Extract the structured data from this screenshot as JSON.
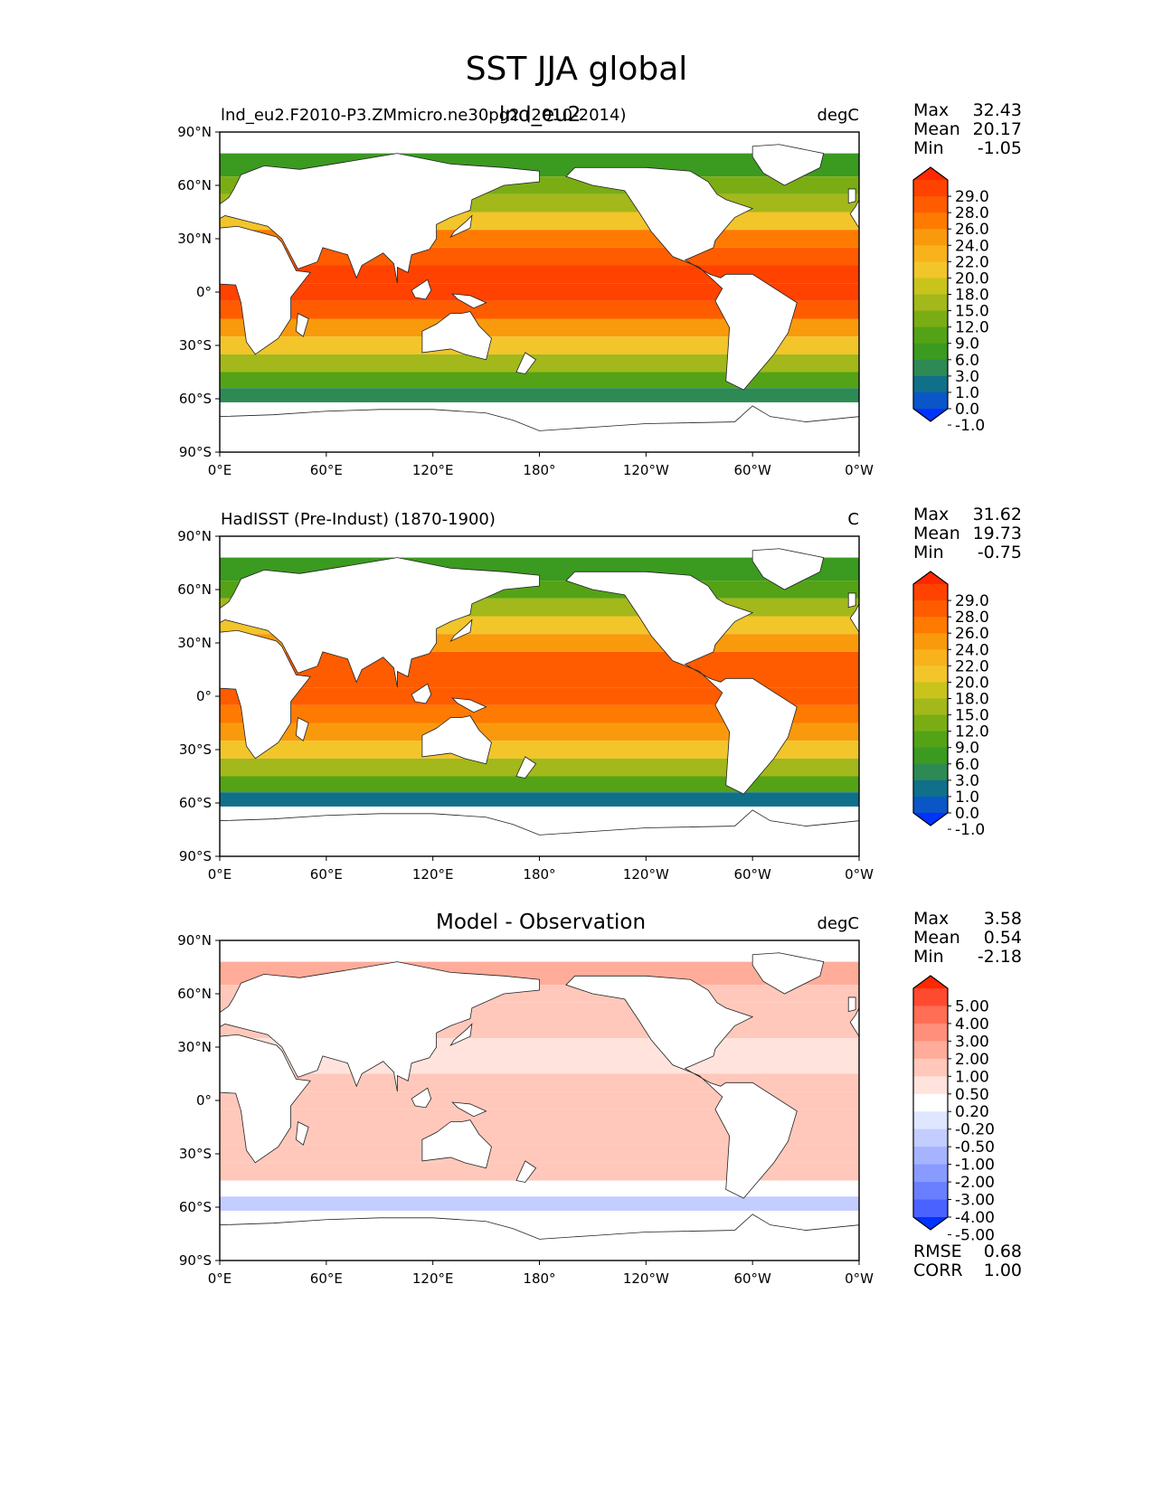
{
  "figure": {
    "title": "SST JJA global"
  },
  "chart_data": [
    {
      "type": "heatmap",
      "panel": "test",
      "title": "lnd_eu2",
      "left_label": "lnd_eu2.F2010-P3.ZMmicro.ne30pg2 (2010-2014)",
      "units": "degC",
      "stats": [
        {
          "label": "Max",
          "value": "32.43"
        },
        {
          "label": "Mean",
          "value": "20.17"
        },
        {
          "label": "Min",
          "value": "-1.05"
        }
      ],
      "colorbar": {
        "ticks": [
          "29.0",
          "28.0",
          "26.0",
          "24.0",
          "22.0",
          "20.0",
          "18.0",
          "15.0",
          "12.0",
          "9.0",
          "6.0",
          "3.0",
          "1.0",
          "0.0",
          "-1.0"
        ],
        "colors": [
          "#ff2800",
          "#ff4200",
          "#ff5c00",
          "#ff7a00",
          "#f99a0c",
          "#f7b21c",
          "#f2c52a",
          "#c8c41c",
          "#a3b81a",
          "#7aad14",
          "#54a316",
          "#3b9a20",
          "#2d8a55",
          "#10708a",
          "#0a56c8",
          "#0033ff"
        ]
      },
      "x_ticks": [
        "0°E",
        "60°E",
        "120°E",
        "180°",
        "120°W",
        "60°W",
        "0°W"
      ],
      "y_ticks": [
        "90°N",
        "60°N",
        "30°N",
        "0°",
        "30°S",
        "60°S",
        "90°S"
      ],
      "xlim": [
        0,
        360
      ],
      "ylim": [
        -90,
        90
      ],
      "fields": [
        {
          "lat": 70,
          "value": 5
        },
        {
          "lat": 60,
          "value": 9
        },
        {
          "lat": 50,
          "value": 14
        },
        {
          "lat": 40,
          "value": 19
        },
        {
          "lat": 30,
          "value": 24
        },
        {
          "lat": 20,
          "value": 27
        },
        {
          "lat": 10,
          "value": 28.5
        },
        {
          "lat": 0,
          "value": 28
        },
        {
          "lat": -10,
          "value": 26
        },
        {
          "lat": -20,
          "value": 23
        },
        {
          "lat": -30,
          "value": 19
        },
        {
          "lat": -40,
          "value": 13
        },
        {
          "lat": -50,
          "value": 7
        },
        {
          "lat": -58,
          "value": 1
        }
      ]
    },
    {
      "type": "heatmap",
      "panel": "reference",
      "title": "",
      "left_label": "HadISST (Pre-Indust) (1870-1900)",
      "units": "C",
      "stats": [
        {
          "label": "Max",
          "value": "31.62"
        },
        {
          "label": "Mean",
          "value": "19.73"
        },
        {
          "label": "Min",
          "value": "-0.75"
        }
      ],
      "colorbar": {
        "ticks": [
          "29.0",
          "28.0",
          "26.0",
          "24.0",
          "22.0",
          "20.0",
          "18.0",
          "15.0",
          "12.0",
          "9.0",
          "6.0",
          "3.0",
          "1.0",
          "0.0",
          "-1.0"
        ],
        "colors": [
          "#ff2800",
          "#ff4200",
          "#ff5c00",
          "#ff7a00",
          "#f99a0c",
          "#f7b21c",
          "#f2c52a",
          "#c8c41c",
          "#a3b81a",
          "#7aad14",
          "#54a316",
          "#3b9a20",
          "#2d8a55",
          "#10708a",
          "#0a56c8",
          "#0033ff"
        ]
      },
      "x_ticks": [
        "0°E",
        "60°E",
        "120°E",
        "180°",
        "120°W",
        "60°W",
        "0°W"
      ],
      "y_ticks": [
        "90°N",
        "60°N",
        "30°N",
        "0°",
        "30°S",
        "60°S",
        "90°S"
      ],
      "xlim": [
        0,
        360
      ],
      "ylim": [
        -90,
        90
      ],
      "fields": [
        {
          "lat": 70,
          "value": 4
        },
        {
          "lat": 60,
          "value": 8
        },
        {
          "lat": 50,
          "value": 13
        },
        {
          "lat": 40,
          "value": 18
        },
        {
          "lat": 30,
          "value": 23
        },
        {
          "lat": 20,
          "value": 26
        },
        {
          "lat": 10,
          "value": 27.5
        },
        {
          "lat": 0,
          "value": 27
        },
        {
          "lat": -10,
          "value": 25
        },
        {
          "lat": -20,
          "value": 22
        },
        {
          "lat": -30,
          "value": 18
        },
        {
          "lat": -40,
          "value": 12
        },
        {
          "lat": -50,
          "value": 6
        },
        {
          "lat": -58,
          "value": 0.5
        }
      ]
    },
    {
      "type": "heatmap",
      "panel": "difference",
      "title": "Model - Observation",
      "left_label": "",
      "units": "degC",
      "stats": [
        {
          "label": "Max",
          "value": "3.58"
        },
        {
          "label": "Mean",
          "value": "0.54"
        },
        {
          "label": "Min",
          "value": "-2.18"
        }
      ],
      "extra_stats": [
        {
          "label": "RMSE",
          "value": "0.68"
        },
        {
          "label": "CORR",
          "value": "1.00"
        }
      ],
      "colorbar": {
        "ticks": [
          "5.00",
          "4.00",
          "3.00",
          "2.00",
          "1.00",
          "0.50",
          "0.20",
          "-0.20",
          "-0.50",
          "-1.00",
          "-2.00",
          "-3.00",
          "-4.00",
          "-5.00"
        ],
        "colors": [
          "#ff2800",
          "#ff4a30",
          "#ff6e55",
          "#ff8f7a",
          "#ffac9a",
          "#ffc8bb",
          "#ffe3dc",
          "#ffffff",
          "#dfe6ff",
          "#c3cdff",
          "#a6b4ff",
          "#8a9bff",
          "#6a7fff",
          "#4a62ff",
          "#0033ff"
        ]
      },
      "x_ticks": [
        "0°E",
        "60°E",
        "120°E",
        "180°",
        "120°W",
        "60°W",
        "0°W"
      ],
      "y_ticks": [
        "90°N",
        "60°N",
        "30°N",
        "0°",
        "30°S",
        "60°S",
        "90°S"
      ],
      "xlim": [
        0,
        360
      ],
      "ylim": [
        -90,
        90
      ],
      "fields": [
        {
          "lat": 70,
          "value": 1.0
        },
        {
          "lat": 60,
          "value": 0.8
        },
        {
          "lat": 50,
          "value": 0.7
        },
        {
          "lat": 40,
          "value": 0.5
        },
        {
          "lat": 30,
          "value": 0.4
        },
        {
          "lat": 20,
          "value": 0.4
        },
        {
          "lat": 10,
          "value": 0.5
        },
        {
          "lat": 0,
          "value": 0.6
        },
        {
          "lat": -10,
          "value": 0.7
        },
        {
          "lat": -20,
          "value": 0.7
        },
        {
          "lat": -30,
          "value": 0.8
        },
        {
          "lat": -40,
          "value": 0.6
        },
        {
          "lat": -50,
          "value": 0.1
        },
        {
          "lat": -58,
          "value": -0.6
        }
      ]
    }
  ]
}
